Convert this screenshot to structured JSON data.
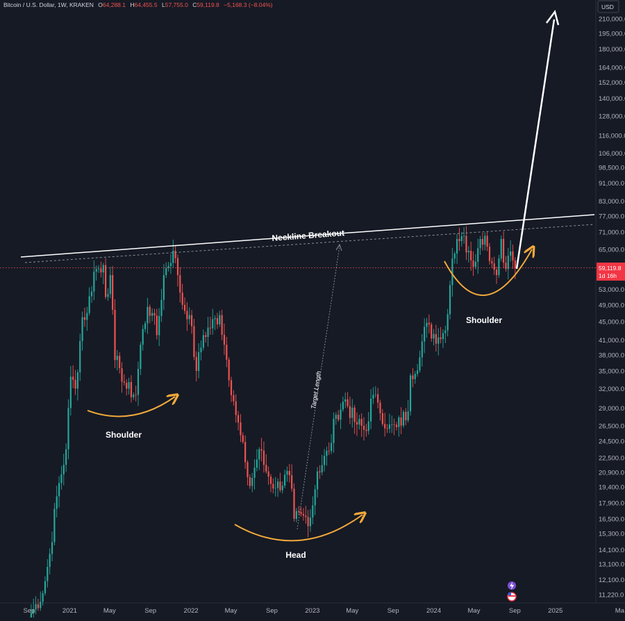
{
  "header": {
    "symbol": "Bitcoin / U.S. Dollar, 1W, KRAKEN",
    "o_label": "O",
    "o_value": "64,288.1",
    "h_label": "H",
    "h_value": "64,455.5",
    "l_label": "L",
    "l_value": "57,755.0",
    "c_label": "C",
    "c_value": "59,119.8",
    "change": "−5,168.3 (−8.04%)"
  },
  "currency": "USD",
  "price_label": {
    "value": "59,119.8",
    "countdown": "1d 16h"
  },
  "colors": {
    "background": "#161a25",
    "up": "#26a69a",
    "down": "#ef5350",
    "curve": "#f2a93b",
    "line": "#ffffff",
    "axis_text": "#b2b5be",
    "price_label_bg": "#f23645"
  },
  "chart_data": {
    "type": "candlestick",
    "scale": "log",
    "y_ticks": [
      "210,000.0",
      "195,000.0",
      "180,000.0",
      "164,000.0",
      "152,000.0",
      "140,000.0",
      "128,000.0",
      "116,000.0",
      "106,000.0",
      "98,500.0",
      "91,000.0",
      "83,000.0",
      "77,000.0",
      "71,000.0",
      "65,000.0",
      "53,000.0",
      "49,000.0",
      "45,000.0",
      "41,000.0",
      "38,000.0",
      "35,000.0",
      "32,000.0",
      "29,000.0",
      "26,500.0",
      "24,500.0",
      "22,500.0",
      "20,900.0",
      "19,400.0",
      "17,900.0",
      "16,500.0",
      "15,300.0",
      "14,100.0",
      "13,100.0",
      "12,100.0",
      "11,220.0"
    ],
    "x_ticks": [
      "Sep",
      "2021",
      "May",
      "Sep",
      "2022",
      "May",
      "Sep",
      "2023",
      "May",
      "Sep",
      "2024",
      "May",
      "Sep",
      "2025",
      "Ma"
    ],
    "anchors": [
      [
        "2020-09-07",
        10200
      ],
      [
        "2020-10-12",
        11300
      ],
      [
        "2020-11-02",
        13800
      ],
      [
        "2020-11-23",
        18500
      ],
      [
        "2020-12-21",
        23500
      ],
      [
        "2021-01-04",
        34000
      ],
      [
        "2021-01-18",
        32000
      ],
      [
        "2021-02-08",
        46000
      ],
      [
        "2021-02-22",
        47000
      ],
      [
        "2021-03-15",
        58000
      ],
      [
        "2021-04-12",
        60000
      ],
      [
        "2021-04-19",
        51000
      ],
      [
        "2021-05-03",
        57000
      ],
      [
        "2021-05-17",
        37000
      ],
      [
        "2021-05-31",
        35500
      ],
      [
        "2021-06-21",
        32000
      ],
      [
        "2021-07-19",
        31000
      ],
      [
        "2021-08-02",
        40000
      ],
      [
        "2021-08-23",
        48500
      ],
      [
        "2021-09-06",
        47000
      ],
      [
        "2021-09-20",
        42000
      ],
      [
        "2021-10-11",
        57000
      ],
      [
        "2021-11-08",
        64500
      ],
      [
        "2021-11-22",
        57000
      ],
      [
        "2021-12-06",
        49000
      ],
      [
        "2021-12-27",
        46500
      ],
      [
        "2022-01-17",
        35000
      ],
      [
        "2022-02-07",
        42000
      ],
      [
        "2022-03-28",
        46500
      ],
      [
        "2022-04-11",
        40000
      ],
      [
        "2022-05-09",
        30000
      ],
      [
        "2022-06-13",
        22000
      ],
      [
        "2022-06-27",
        19500
      ],
      [
        "2022-07-25",
        23500
      ],
      [
        "2022-08-15",
        21000
      ],
      [
        "2022-09-12",
        19300
      ],
      [
        "2022-10-24",
        20600
      ],
      [
        "2022-11-07",
        16500
      ],
      [
        "2022-12-26",
        16600
      ],
      [
        "2023-01-16",
        21000
      ],
      [
        "2023-02-20",
        23300
      ],
      [
        "2023-03-13",
        28000
      ],
      [
        "2023-04-10",
        30300
      ],
      [
        "2023-05-08",
        27000
      ],
      [
        "2023-06-12",
        25800
      ],
      [
        "2023-06-26",
        30400
      ],
      [
        "2023-07-17",
        29800
      ],
      [
        "2023-08-14",
        26100
      ],
      [
        "2023-09-11",
        26300
      ],
      [
        "2023-10-16",
        28500
      ],
      [
        "2023-10-23",
        34200
      ],
      [
        "2023-11-20",
        37500
      ],
      [
        "2023-12-04",
        43800
      ],
      [
        "2024-01-15",
        41500
      ],
      [
        "2024-02-05",
        43000
      ],
      [
        "2024-02-26",
        62000
      ],
      [
        "2024-03-11",
        68500
      ],
      [
        "2024-03-25",
        69500
      ],
      [
        "2024-04-15",
        64500
      ],
      [
        "2024-05-06",
        61000
      ],
      [
        "2024-05-20",
        68500
      ],
      [
        "2024-06-03",
        69600
      ],
      [
        "2024-06-24",
        60500
      ],
      [
        "2024-07-08",
        57000
      ],
      [
        "2024-07-22",
        68500
      ],
      [
        "2024-08-05",
        58800
      ],
      [
        "2024-08-19",
        64300
      ],
      [
        "2024-09-02",
        59119.8
      ]
    ],
    "annotations": [
      {
        "text": "Neckline Breakout"
      },
      {
        "text": "Target Length"
      },
      {
        "text": "Shoulder"
      },
      {
        "text": "Head"
      },
      {
        "text": "Shoulder"
      }
    ]
  }
}
